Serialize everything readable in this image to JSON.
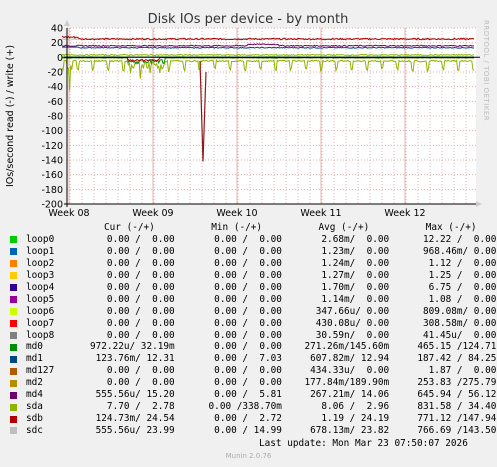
{
  "chart_data": {
    "type": "line",
    "title": "Disk IOs per device - by month",
    "ylabel": "IOs/second read (-) / write (+)",
    "ylim": [
      -200,
      40
    ],
    "yticks": [
      40,
      20,
      0,
      -20,
      -40,
      -60,
      -80,
      -100,
      -120,
      -140,
      -160,
      -180,
      -200
    ],
    "xticks": [
      "Week 08",
      "Week 09",
      "Week 10",
      "Week 11",
      "Week 12"
    ],
    "grid": true,
    "side_label": "RRDTOOL / TOBI OETIKER",
    "legend_columns": [
      "Cur (-/+)",
      "Min (-/+)",
      "Avg (-/+)",
      "Max (-/+)"
    ],
    "series": [
      {
        "name": "loop0",
        "color": "#00cc00",
        "cur": "0.00 /  0.00",
        "min": "0.00 /  0.00",
        "avg": "2.68m/  0.00",
        "max": "12.22 /  0.00"
      },
      {
        "name": "loop1",
        "color": "#0066b3",
        "cur": "0.00 /  0.00",
        "min": "0.00 /  0.00",
        "avg": "1.23m/  0.00",
        "max": "968.46m/ 0.00"
      },
      {
        "name": "loop2",
        "color": "#ff8000",
        "cur": "0.00 /  0.00",
        "min": "0.00 /  0.00",
        "avg": "1.24m/  0.00",
        "max": "1.12 /  0.00"
      },
      {
        "name": "loop3",
        "color": "#ffcc00",
        "cur": "0.00 /  0.00",
        "min": "0.00 /  0.00",
        "avg": "1.27m/  0.00",
        "max": "1.25 /  0.00"
      },
      {
        "name": "loop4",
        "color": "#330099",
        "cur": "0.00 /  0.00",
        "min": "0.00 /  0.00",
        "avg": "1.70m/  0.00",
        "max": "6.75 /  0.00"
      },
      {
        "name": "loop5",
        "color": "#990099",
        "cur": "0.00 /  0.00",
        "min": "0.00 /  0.00",
        "avg": "1.14m/  0.00",
        "max": "1.08 /  0.00"
      },
      {
        "name": "loop6",
        "color": "#ccff00",
        "cur": "0.00 /  0.00",
        "min": "0.00 /  0.00",
        "avg": "347.66u/ 0.00",
        "max": "809.08m/ 0.00"
      },
      {
        "name": "loop7",
        "color": "#ff0000",
        "cur": "0.00 /  0.00",
        "min": "0.00 /  0.00",
        "avg": "430.08u/ 0.00",
        "max": "308.58m/ 0.00"
      },
      {
        "name": "loop8",
        "color": "#808080",
        "cur": "0.00 /  0.00",
        "min": "0.00 /  0.00",
        "avg": "30.59n/  0.00",
        "max": "41.45u/  0.00"
      },
      {
        "name": "md0",
        "color": "#008f00",
        "cur": "972.22u/ 32.19m",
        "min": "0.00 /  0.00",
        "avg": "271.26m/145.60m",
        "max": "465.15 /124.71"
      },
      {
        "name": "md1",
        "color": "#00487d",
        "cur": "123.76m/ 12.31",
        "min": "0.00 /  7.03",
        "avg": "607.82m/ 12.94",
        "max": "187.42 / 84.25"
      },
      {
        "name": "md127",
        "color": "#b35a00",
        "cur": "0.00 /  0.00",
        "min": "0.00 /  0.00",
        "avg": "434.33u/  0.00",
        "max": "1.87 /  0.00"
      },
      {
        "name": "md2",
        "color": "#b38f00",
        "cur": "0.00 /  0.00",
        "min": "0.00 /  0.00",
        "avg": "177.84m/189.90m",
        "max": "253.83 /275.79"
      },
      {
        "name": "md4",
        "color": "#6b006b",
        "cur": "555.56u/ 15.20",
        "min": "0.00 /  5.81",
        "avg": "267.21m/ 14.06",
        "max": "645.94 / 56.12"
      },
      {
        "name": "sda",
        "color": "#8fb300",
        "cur": "7.70 /  2.78",
        "min": "0.00 /338.70m",
        "avg": "8.06 /  2.96",
        "max": "831.58 / 34.40"
      },
      {
        "name": "sdb",
        "color": "#b30000",
        "cur": "124.73m/ 24.54",
        "min": "0.00 /  2.72",
        "avg": "1.19 / 24.19",
        "max": "771.12 /147.94"
      },
      {
        "name": "sdc",
        "color": "#bebebe",
        "cur": "555.56u/ 23.99",
        "min": "0.00 / 14.99",
        "avg": "678.13m/ 23.82",
        "max": "766.69 /143.50"
      }
    ]
  },
  "legend": {
    "header": "Cur (-/+)          Min (-/+)          Avg (-/+)          Max (-/+)"
  },
  "footer": {
    "last_update": "Last update: Mon Mar 23 07:50:07 2026",
    "version": "Munin 2.0.76"
  }
}
